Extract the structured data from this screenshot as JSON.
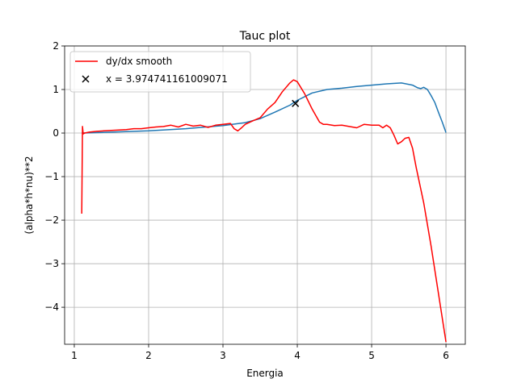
{
  "chart_data": {
    "type": "line",
    "title": "Tauc plot",
    "xlabel": "Energia",
    "ylabel": "(alpha*h*nu)**2",
    "xlim": [
      0.87,
      6.26
    ],
    "ylim": [
      -4.85,
      2.0
    ],
    "xticks": [
      1,
      2,
      3,
      4,
      5,
      6
    ],
    "yticks": [
      -4,
      -3,
      -2,
      -1,
      0,
      1,
      2
    ],
    "ytick_labels": [
      "−4",
      "−3",
      "−2",
      "−1",
      "0",
      "1",
      "2"
    ],
    "grid": true,
    "legend_position": "top-left",
    "series": [
      {
        "color": "#1f77b4",
        "x": [
          1.1,
          1.5,
          2.0,
          2.5,
          3.0,
          3.3,
          3.5,
          3.7,
          3.9,
          4.0,
          4.2,
          4.4,
          4.6,
          4.8,
          5.0,
          5.2,
          5.4,
          5.55,
          5.62,
          5.66,
          5.7,
          5.75,
          5.8,
          5.85,
          5.9,
          5.95,
          6.0
        ],
        "y": [
          0.0,
          0.02,
          0.05,
          0.1,
          0.17,
          0.24,
          0.33,
          0.48,
          0.64,
          0.75,
          0.92,
          1.0,
          1.03,
          1.07,
          1.1,
          1.13,
          1.15,
          1.1,
          1.04,
          1.02,
          1.05,
          1.0,
          0.86,
          0.7,
          0.47,
          0.25,
          0.01
        ]
      },
      {
        "name": "dy/dx smooth",
        "color": "#ff0000",
        "x": [
          1.1,
          1.11,
          1.12,
          1.14,
          1.2,
          1.3,
          1.4,
          1.5,
          1.6,
          1.7,
          1.8,
          1.9,
          2.0,
          2.1,
          2.2,
          2.3,
          2.4,
          2.5,
          2.6,
          2.7,
          2.8,
          2.9,
          3.0,
          3.1,
          3.15,
          3.2,
          3.25,
          3.3,
          3.4,
          3.5,
          3.6,
          3.7,
          3.8,
          3.9,
          3.95,
          4.0,
          4.1,
          4.2,
          4.3,
          4.35,
          4.4,
          4.5,
          4.6,
          4.7,
          4.8,
          4.9,
          5.0,
          5.1,
          5.15,
          5.2,
          5.25,
          5.3,
          5.35,
          5.4,
          5.45,
          5.5,
          5.55,
          5.6,
          5.7,
          5.8,
          5.9,
          6.0
        ],
        "y": [
          -1.85,
          0.15,
          -0.02,
          0.0,
          0.02,
          0.04,
          0.05,
          0.06,
          0.07,
          0.08,
          0.1,
          0.1,
          0.12,
          0.14,
          0.15,
          0.18,
          0.14,
          0.2,
          0.16,
          0.18,
          0.13,
          0.18,
          0.2,
          0.22,
          0.1,
          0.05,
          0.12,
          0.2,
          0.28,
          0.35,
          0.55,
          0.7,
          0.95,
          1.15,
          1.22,
          1.18,
          0.9,
          0.55,
          0.25,
          0.2,
          0.2,
          0.17,
          0.18,
          0.15,
          0.12,
          0.2,
          0.18,
          0.18,
          0.12,
          0.18,
          0.12,
          -0.05,
          -0.25,
          -0.2,
          -0.12,
          -0.1,
          -0.35,
          -0.8,
          -1.6,
          -2.6,
          -3.7,
          -4.8
        ]
      }
    ],
    "marker": {
      "label": "x = 3.974741161009071",
      "x": 3.9747,
      "y": 0.68,
      "color": "#000000"
    }
  }
}
